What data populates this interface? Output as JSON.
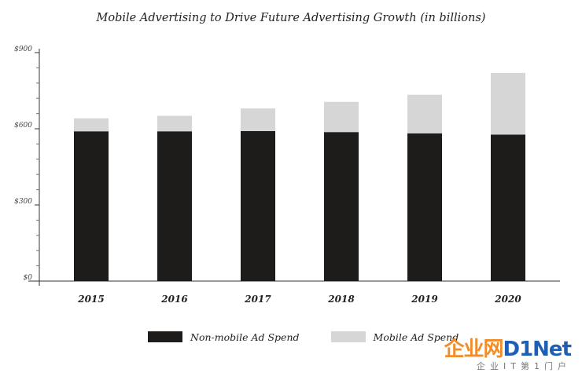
{
  "chart_data": {
    "type": "bar",
    "stacked": true,
    "title": "Mobile Advertising to Drive Future Advertising Growth (in billions)",
    "categories": [
      "2015",
      "2016",
      "2017",
      "2018",
      "2019",
      "2020"
    ],
    "series": [
      {
        "name": "Non-mobile Ad Spend",
        "values": [
          590,
          590,
          591,
          587,
          582,
          577
        ],
        "color": "#1e1b1b"
      },
      {
        "name": "Mobile Ad Spend",
        "values": [
          51,
          61,
          89,
          119,
          152,
          243
        ],
        "color": "#d6d6d6"
      }
    ],
    "yticks": [
      "$0",
      "$300",
      "$600",
      "$900"
    ],
    "ytick_values": [
      0,
      300,
      600,
      900
    ],
    "ylim": [
      0,
      900
    ],
    "xlabel": "",
    "ylabel": "",
    "grid": false,
    "legend_position": "bottom"
  },
  "watermark": {
    "part1": "企业网",
    "part2": "D1Net",
    "sub": "企业IT第1门户",
    "color1": "#f28c28",
    "color2": "#1f5fb3"
  }
}
